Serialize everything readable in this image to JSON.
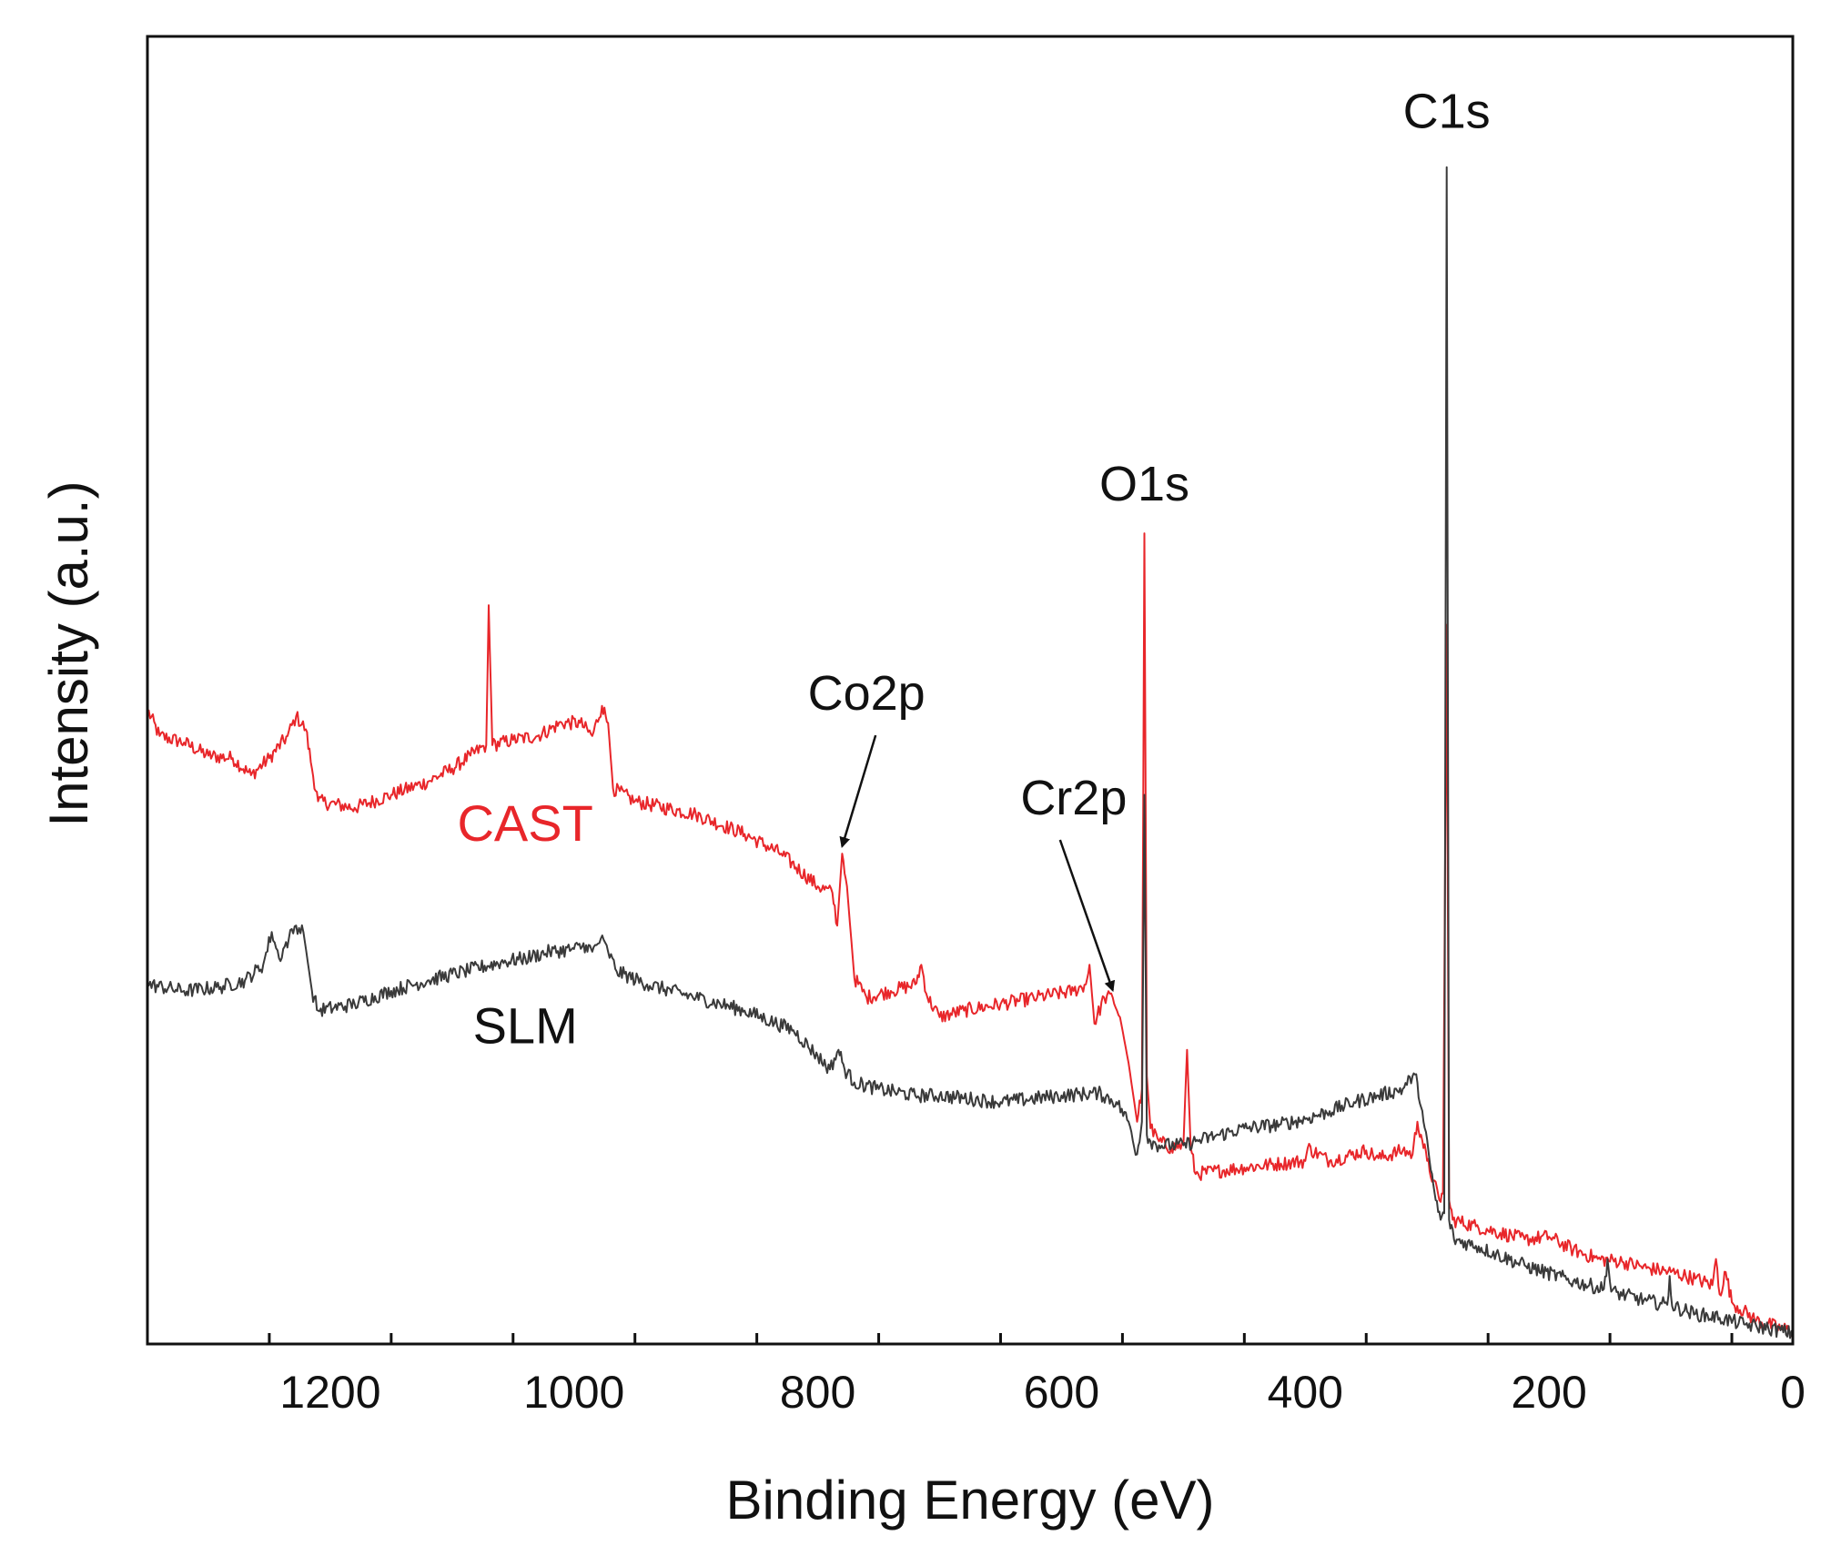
{
  "chart_data": {
    "type": "line",
    "title": "",
    "xlabel": "Binding Energy (eV)",
    "ylabel": "Intensity (a.u.)",
    "xlim": [
      1350,
      0
    ],
    "ylim": [
      0,
      100
    ],
    "x_reversed": true,
    "y_ticks_shown": false,
    "x_ticks": [
      1200,
      1000,
      800,
      600,
      400,
      200,
      0
    ],
    "x_tick_labels": [
      "1200",
      "1000",
      "800",
      "600",
      "400",
      "200",
      "0"
    ],
    "x_minor_step": 100,
    "grid": false,
    "legend": "none",
    "series": [
      {
        "name": "CAST",
        "color": "#e8262a",
        "label_position": "left",
        "points": [
          [
            1350,
            48.5
          ],
          [
            1340,
            46.5
          ],
          [
            1320,
            46
          ],
          [
            1300,
            45
          ],
          [
            1280,
            44.8
          ],
          [
            1265,
            43.5
          ],
          [
            1250,
            44.8
          ],
          [
            1235,
            46.5
          ],
          [
            1228,
            48
          ],
          [
            1220,
            47
          ],
          [
            1215,
            44
          ],
          [
            1210,
            41.5
          ],
          [
            1180,
            41
          ],
          [
            1150,
            42
          ],
          [
            1120,
            43
          ],
          [
            1100,
            44
          ],
          [
            1085,
            45
          ],
          [
            1072,
            45.8
          ],
          [
            1070,
            56.5
          ],
          [
            1067,
            45.8
          ],
          [
            1050,
            46.2
          ],
          [
            1030,
            46.5
          ],
          [
            1010,
            47.5
          ],
          [
            995,
            47.5
          ],
          [
            985,
            46.5
          ],
          [
            977,
            48.8
          ],
          [
            972,
            47.5
          ],
          [
            968,
            42.5
          ],
          [
            950,
            41.5
          ],
          [
            900,
            40.5
          ],
          [
            860,
            39
          ],
          [
            830,
            37.5
          ],
          [
            800,
            35
          ],
          [
            788,
            34.5
          ],
          [
            784,
            32
          ],
          [
            780,
            37.5
          ],
          [
            776,
            35
          ],
          [
            770,
            28
          ],
          [
            760,
            26.5
          ],
          [
            740,
            27
          ],
          [
            720,
            27.5
          ],
          [
            715,
            29
          ],
          [
            710,
            26.5
          ],
          [
            700,
            25
          ],
          [
            680,
            25.5
          ],
          [
            650,
            26
          ],
          [
            620,
            26.5
          ],
          [
            590,
            27
          ],
          [
            580,
            27.5
          ],
          [
            577,
            29
          ],
          [
            573,
            24.5
          ],
          [
            565,
            26.5
          ],
          [
            558,
            26.5
          ],
          [
            552,
            25
          ],
          [
            545,
            21.5
          ],
          [
            538,
            17
          ],
          [
            534,
            19.5
          ],
          [
            532,
            62
          ],
          [
            530,
            20.5
          ],
          [
            527,
            16.5
          ],
          [
            520,
            15.5
          ],
          [
            510,
            15
          ],
          [
            500,
            15.2
          ],
          [
            497,
            22.5
          ],
          [
            494,
            15
          ],
          [
            490,
            13
          ],
          [
            450,
            13.5
          ],
          [
            420,
            13.8
          ],
          [
            400,
            14
          ],
          [
            398,
            15
          ],
          [
            380,
            14
          ],
          [
            350,
            14.8
          ],
          [
            340,
            14.2
          ],
          [
            320,
            14.8
          ],
          [
            312,
            14.5
          ],
          [
            308,
            17
          ],
          [
            305,
            16
          ],
          [
            300,
            14
          ],
          [
            295,
            12.5
          ],
          [
            290,
            11
          ],
          [
            287,
            11.5
          ],
          [
            284,
            55
          ],
          [
            282,
            11
          ],
          [
            279,
            9.5
          ],
          [
            260,
            9
          ],
          [
            220,
            8
          ],
          [
            200,
            8.2
          ],
          [
            180,
            7.2
          ],
          [
            160,
            6.5
          ],
          [
            140,
            6.3
          ],
          [
            120,
            5.8
          ],
          [
            100,
            5.5
          ],
          [
            80,
            5
          ],
          [
            66,
            4.5
          ],
          [
            63,
            6.5
          ],
          [
            60,
            3.8
          ],
          [
            55,
            5.5
          ],
          [
            50,
            3.2
          ],
          [
            30,
            1.8
          ],
          [
            10,
            1.2
          ],
          [
            0,
            1
          ]
        ]
      },
      {
        "name": "SLM",
        "color": "#3a3a3a",
        "label_position": "left",
        "points": [
          [
            1350,
            27.5
          ],
          [
            1320,
            27
          ],
          [
            1290,
            27.3
          ],
          [
            1270,
            27.8
          ],
          [
            1255,
            29
          ],
          [
            1248,
            31.5
          ],
          [
            1242,
            29.5
          ],
          [
            1234,
            31
          ],
          [
            1228,
            32
          ],
          [
            1222,
            31.5
          ],
          [
            1215,
            27
          ],
          [
            1210,
            25.5
          ],
          [
            1180,
            26
          ],
          [
            1150,
            27
          ],
          [
            1120,
            27.8
          ],
          [
            1090,
            28.5
          ],
          [
            1060,
            29.2
          ],
          [
            1040,
            29.5
          ],
          [
            1020,
            30
          ],
          [
            1000,
            30.2
          ],
          [
            990,
            30.5
          ],
          [
            985,
            30
          ],
          [
            978,
            31
          ],
          [
            972,
            30
          ],
          [
            965,
            28.5
          ],
          [
            940,
            27.5
          ],
          [
            900,
            26.5
          ],
          [
            860,
            25.5
          ],
          [
            820,
            24
          ],
          [
            800,
            22
          ],
          [
            790,
            21
          ],
          [
            783,
            22.5
          ],
          [
            778,
            21
          ],
          [
            770,
            20
          ],
          [
            750,
            19.5
          ],
          [
            720,
            19
          ],
          [
            700,
            19
          ],
          [
            650,
            18.5
          ],
          [
            600,
            19
          ],
          [
            570,
            19.2
          ],
          [
            555,
            18.5
          ],
          [
            545,
            17
          ],
          [
            538,
            14.5
          ],
          [
            534,
            17
          ],
          [
            532,
            42
          ],
          [
            530,
            16
          ],
          [
            527,
            15.5
          ],
          [
            520,
            15.2
          ],
          [
            500,
            15.2
          ],
          [
            490,
            15.5
          ],
          [
            470,
            16
          ],
          [
            450,
            16.5
          ],
          [
            420,
            16.8
          ],
          [
            400,
            17.2
          ],
          [
            380,
            17.8
          ],
          [
            360,
            18.5
          ],
          [
            340,
            19
          ],
          [
            320,
            19.5
          ],
          [
            312,
            20.5
          ],
          [
            308,
            20
          ],
          [
            303,
            17
          ],
          [
            298,
            14
          ],
          [
            293,
            11
          ],
          [
            289,
            9.5
          ],
          [
            286,
            10
          ],
          [
            284,
            90
          ],
          [
            282,
            9.5
          ],
          [
            278,
            8
          ],
          [
            260,
            7.5
          ],
          [
            220,
            6
          ],
          [
            180,
            4.8
          ],
          [
            155,
            4.2
          ],
          [
            152,
            6.5
          ],
          [
            149,
            4
          ],
          [
            120,
            3.3
          ],
          [
            103,
            3
          ],
          [
            101,
            5.2
          ],
          [
            99,
            2.9
          ],
          [
            80,
            2.3
          ],
          [
            60,
            2
          ],
          [
            40,
            1.5
          ],
          [
            20,
            1.2
          ],
          [
            0,
            0.8
          ]
        ]
      }
    ],
    "annotations": [
      {
        "text": "C1s",
        "x": 284,
        "y": 93,
        "arrow": false
      },
      {
        "text": "O1s",
        "x": 532,
        "y": 64.5,
        "arrow": false
      },
      {
        "text": "Co2p",
        "x": 760,
        "y": 48.5,
        "arrow": true,
        "arrow_to": [
          780,
          37.5
        ]
      },
      {
        "text": "Cr2p",
        "x": 590,
        "y": 40.5,
        "arrow": true,
        "arrow_to": [
          558,
          26.5
        ]
      }
    ],
    "series_labels": [
      {
        "text": "CAST",
        "x": 1040,
        "y": 38.5
      },
      {
        "text": "SLM",
        "x": 1040,
        "y": 23
      }
    ]
  }
}
